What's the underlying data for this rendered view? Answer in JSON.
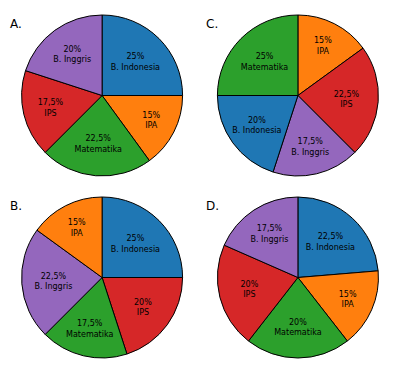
{
  "chart_data": [
    {
      "type": "pie",
      "title": "A.",
      "categories": [
        "B. Indonesia",
        "IPA",
        "Matematika",
        "IPS",
        "B. Inggris"
      ],
      "values": [
        25,
        15,
        22.5,
        17.5,
        20
      ],
      "value_labels": [
        "25%",
        "15%",
        "22,5%",
        "17,5%",
        "20%"
      ],
      "data_labels": true
    },
    {
      "type": "pie",
      "title": "B.",
      "categories": [
        "B. Indonesia",
        "IPS",
        "Matematika",
        "B. Inggris",
        "IPA"
      ],
      "values": [
        25,
        20,
        17.5,
        22.5,
        15
      ],
      "value_labels": [
        "25%",
        "20%",
        "17,5%",
        "22,5%",
        "15%"
      ],
      "data_labels": true
    },
    {
      "type": "pie",
      "title": "C.",
      "categories": [
        "IPA",
        "IPS",
        "B. Inggris",
        "B. Indonesia",
        "Matematika"
      ],
      "values": [
        15,
        22.5,
        17.5,
        20,
        25
      ],
      "value_labels": [
        "15%",
        "22,5%",
        "17,5%",
        "20%",
        "25%"
      ],
      "data_labels": true
    },
    {
      "type": "pie",
      "title": "D.",
      "categories": [
        "B. Indonesia",
        "IPA",
        "Matematika",
        "IPS",
        "B. Inggris"
      ],
      "values": [
        22.5,
        15,
        20,
        20,
        17.5
      ],
      "value_labels": [
        "22,5%",
        "15%",
        "20%",
        "20%",
        "17,5%"
      ],
      "data_labels": true
    }
  ]
}
